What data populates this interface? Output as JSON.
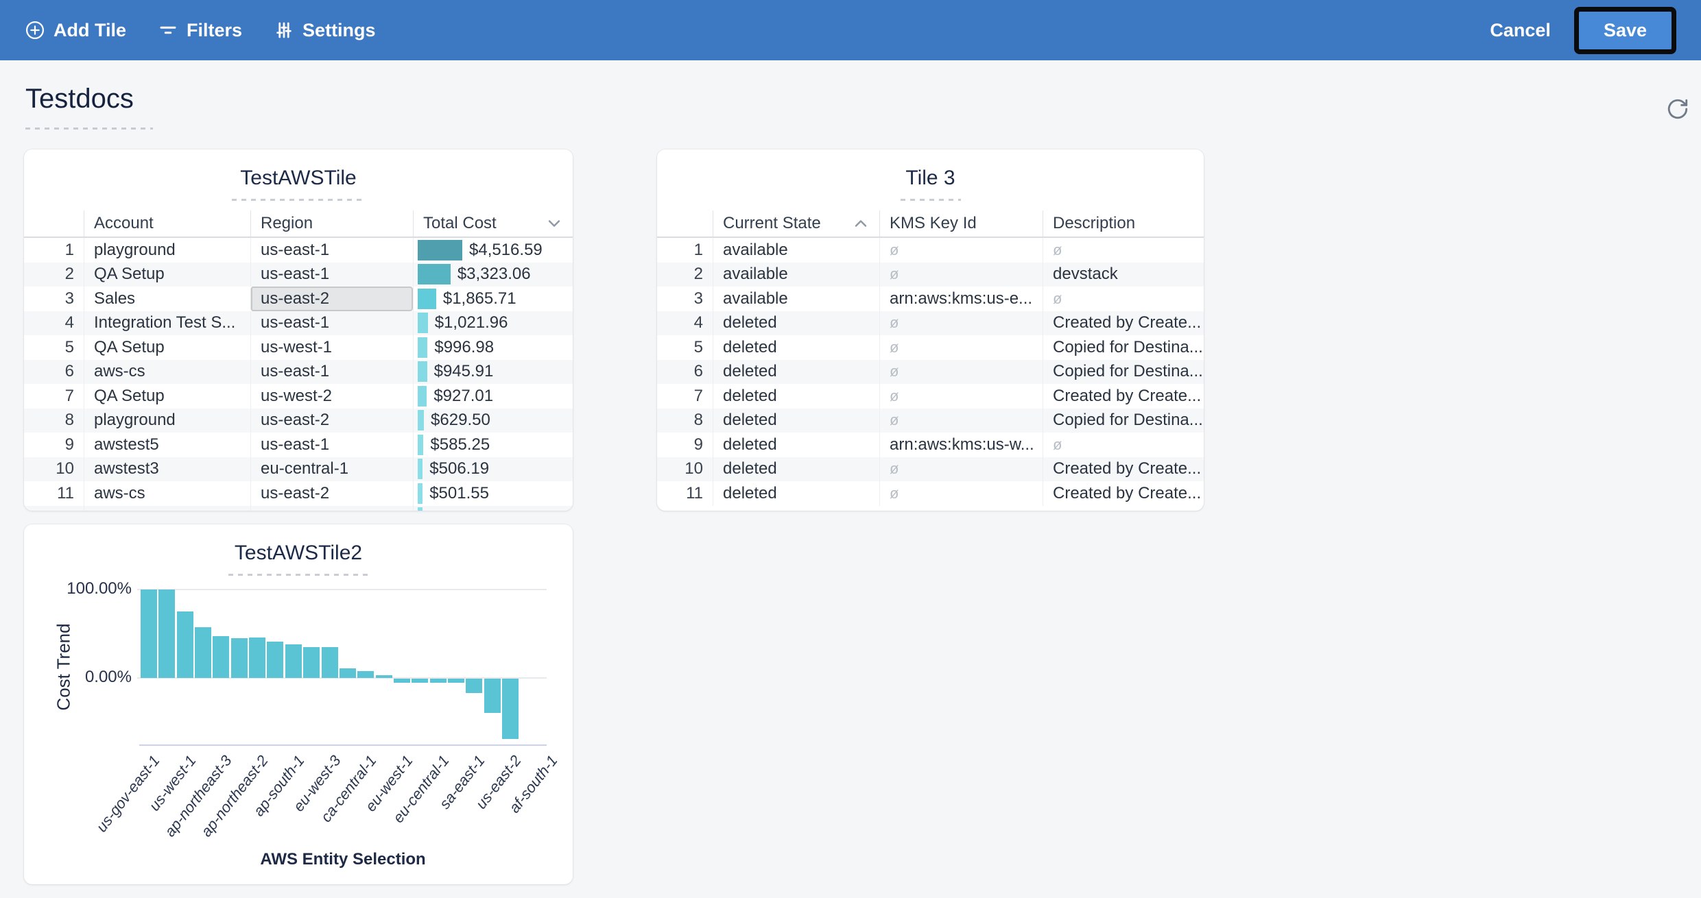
{
  "topbar": {
    "add_tile_label": "Add Tile",
    "filters_label": "Filters",
    "settings_label": "Settings",
    "cancel_label": "Cancel",
    "save_label": "Save",
    "bar_color": "#3d78c3",
    "save_button_color": "#4789d6",
    "save_highlight_color": "#0b0b0b"
  },
  "page": {
    "title": "Testdocs"
  },
  "tile_aws": {
    "title": "TestAWSTile",
    "columns": [
      "Account",
      "Region",
      "Total Cost"
    ],
    "sort": {
      "column": "Total Cost",
      "direction": "desc"
    },
    "max_cost": 4516.59,
    "selected_cell": {
      "row": 3,
      "column": "Region"
    },
    "rows": [
      {
        "n": "1",
        "account": "playground",
        "region": "us-east-1",
        "cost_label": "$4,516.59",
        "cost_value": 4516.59,
        "bar_color": "#4f9fae"
      },
      {
        "n": "2",
        "account": "QA Setup",
        "region": "us-east-1",
        "cost_label": "$3,323.06",
        "cost_value": 3323.06,
        "bar_color": "#57b4c3"
      },
      {
        "n": "3",
        "account": "Sales",
        "region": "us-east-2",
        "cost_label": "$1,865.71",
        "cost_value": 1865.71,
        "bar_color": "#60cbd9"
      },
      {
        "n": "4",
        "account": "Integration Test S...",
        "region": "us-east-1",
        "cost_label": "$1,021.96",
        "cost_value": 1021.96,
        "bar_color": "#82d9e3"
      },
      {
        "n": "5",
        "account": "QA Setup",
        "region": "us-west-1",
        "cost_label": "$996.98",
        "cost_value": 996.98,
        "bar_color": "#83dae4"
      },
      {
        "n": "6",
        "account": "aws-cs",
        "region": "us-east-1",
        "cost_label": "$945.91",
        "cost_value": 945.91,
        "bar_color": "#84dae4"
      },
      {
        "n": "7",
        "account": "QA Setup",
        "region": "us-west-2",
        "cost_label": "$927.01",
        "cost_value": 927.01,
        "bar_color": "#84dae4"
      },
      {
        "n": "8",
        "account": "playground",
        "region": "us-east-2",
        "cost_label": "$629.50",
        "cost_value": 629.5,
        "bar_color": "#88dce6"
      },
      {
        "n": "9",
        "account": "awstest5",
        "region": "us-east-1",
        "cost_label": "$585.25",
        "cost_value": 585.25,
        "bar_color": "#89dde6"
      },
      {
        "n": "10",
        "account": "awstest3",
        "region": "eu-central-1",
        "cost_label": "$506.19",
        "cost_value": 506.19,
        "bar_color": "#8adee7"
      },
      {
        "n": "11",
        "account": "aws-cs",
        "region": "us-east-2",
        "cost_label": "$501.55",
        "cost_value": 501.55,
        "bar_color": "#8adee7"
      }
    ],
    "partial_row": {
      "cost_value": 490,
      "bar_color": "#8adee7"
    }
  },
  "tile_kms": {
    "title": "Tile 3",
    "columns": [
      "Current State",
      "KMS Key Id",
      "Description"
    ],
    "sort": {
      "column": "Current State",
      "direction": "asc"
    },
    "null_symbol": "ø",
    "rows": [
      {
        "n": "1",
        "state": "available",
        "kms": "ø",
        "desc": "ø"
      },
      {
        "n": "2",
        "state": "available",
        "kms": "ø",
        "desc": "devstack"
      },
      {
        "n": "3",
        "state": "available",
        "kms": "arn:aws:kms:us-e...",
        "desc": "ø"
      },
      {
        "n": "4",
        "state": "deleted",
        "kms": "ø",
        "desc": "Created by Create..."
      },
      {
        "n": "5",
        "state": "deleted",
        "kms": "ø",
        "desc": "Copied for Destina..."
      },
      {
        "n": "6",
        "state": "deleted",
        "kms": "ø",
        "desc": "Copied for Destina..."
      },
      {
        "n": "7",
        "state": "deleted",
        "kms": "ø",
        "desc": "Created by Create..."
      },
      {
        "n": "8",
        "state": "deleted",
        "kms": "ø",
        "desc": "Copied for Destina..."
      },
      {
        "n": "9",
        "state": "deleted",
        "kms": "arn:aws:kms:us-w...",
        "desc": "ø"
      },
      {
        "n": "10",
        "state": "deleted",
        "kms": "ø",
        "desc": "Created by Create..."
      },
      {
        "n": "11",
        "state": "deleted",
        "kms": "ø",
        "desc": "Created by Create..."
      }
    ]
  },
  "chart_data": {
    "type": "bar",
    "title": "TestAWSTile2",
    "xlabel": "AWS Entity Selection",
    "ylabel": "Cost Trend",
    "yticks": [
      "100.00%",
      "0.00%"
    ],
    "ylim": [
      -75,
      105
    ],
    "grid": "horizontal",
    "legend": "none",
    "bar_color": "#5ac4d5",
    "x_tick_labels": [
      "us-gov-east-1",
      "us-west-1",
      "ap-northeast-3",
      "ap-northeast-2",
      "ap-south-1",
      "eu-west-3",
      "ca-central-1",
      "eu-west-1",
      "eu-central-1",
      "sa-east-1",
      "us-east-2",
      "af-south-1"
    ],
    "values_pct": [
      100,
      100,
      75.5,
      57,
      47,
      45,
      45.5,
      41,
      38,
      35,
      35,
      10.5,
      7.5,
      3,
      -5,
      -5,
      -5,
      -5,
      -16.5,
      -38.5,
      -68
    ]
  }
}
